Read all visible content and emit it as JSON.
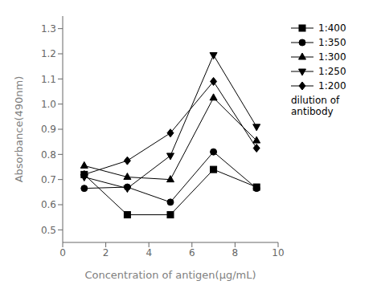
{
  "chart_data": {
    "type": "line",
    "x": [
      1,
      3,
      5,
      7,
      9
    ],
    "series": [
      {
        "name": "1:400",
        "color": "#000000",
        "marker": "square",
        "values": [
          0.72,
          0.56,
          0.56,
          0.74,
          0.67
        ]
      },
      {
        "name": "1:350",
        "color": "#000000",
        "marker": "circle",
        "values": [
          0.665,
          0.67,
          0.61,
          0.81,
          0.665
        ]
      },
      {
        "name": "1:300",
        "color": "#000000",
        "marker": "triangle",
        "values": [
          0.755,
          0.71,
          0.7,
          1.025,
          0.855
        ]
      },
      {
        "name": "1:250",
        "color": "#000000",
        "marker": "triangle-down",
        "values": [
          0.71,
          0.665,
          0.795,
          1.195,
          0.91
        ]
      },
      {
        "name": "1:200",
        "color": "#000000",
        "marker": "diamond",
        "values": [
          0.72,
          0.775,
          0.885,
          1.09,
          0.825
        ]
      }
    ],
    "x_label": "Concentration of antigen(μg/mL)",
    "y_label": "Absorbance(490nm)",
    "xlim": [
      0,
      10
    ],
    "ylim": [
      0.45,
      1.35
    ],
    "xticks": [
      0,
      2,
      4,
      6,
      8,
      10
    ],
    "yticks": [
      0.5,
      0.6,
      0.7,
      0.8,
      0.9,
      {
        "value": 1.0,
        "label": "1.0"
      },
      1.1,
      1.2,
      1.3
    ],
    "grid": false,
    "legend": "right",
    "annotations": [
      {
        "text": "dilution of antibody"
      }
    ]
  }
}
